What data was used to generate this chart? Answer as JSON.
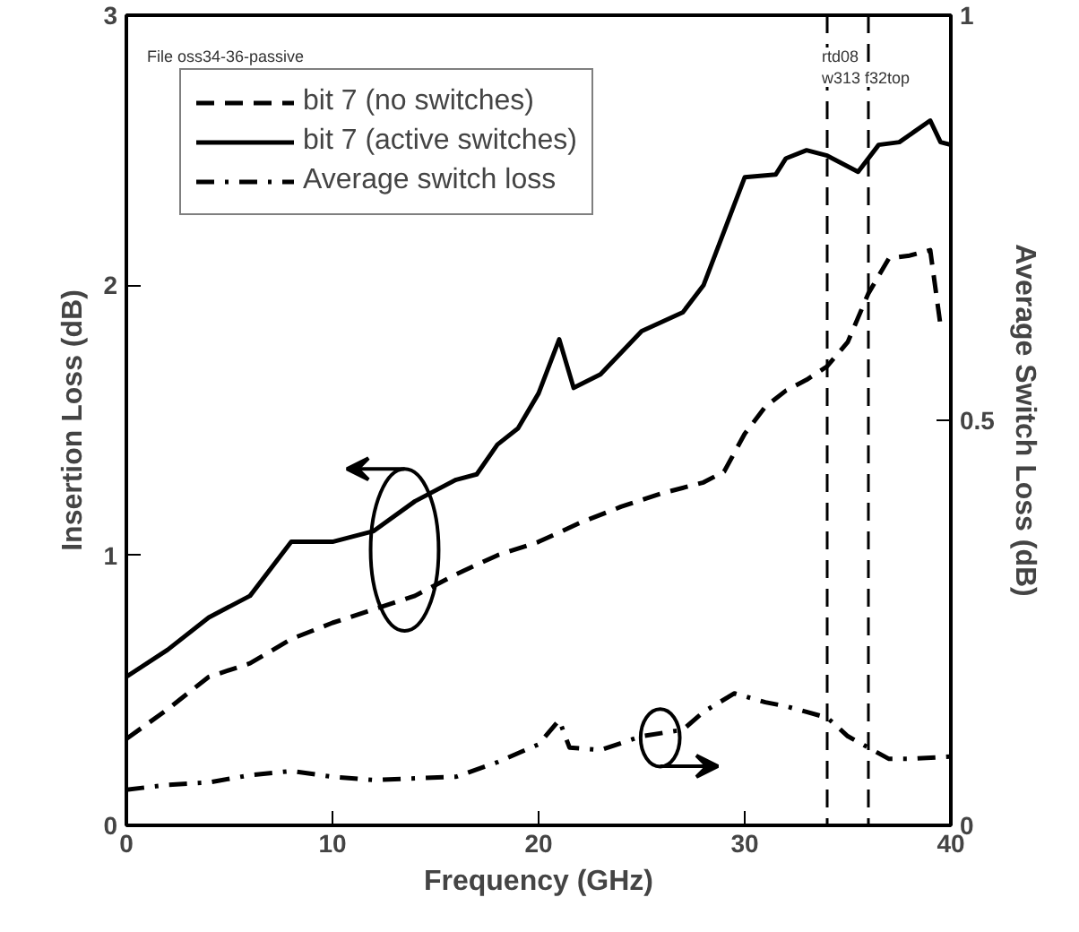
{
  "chart_data": {
    "type": "line",
    "xlabel": "Frequency (GHz)",
    "ylabel": "Insertion Loss (dB)",
    "y2label": "Average Switch Loss (dB)",
    "xlim": [
      0,
      40
    ],
    "xticks": [
      0,
      10,
      20,
      30,
      40
    ],
    "ylim": [
      0,
      3
    ],
    "yticks": [
      0,
      1,
      2,
      3
    ],
    "y2lim": [
      0,
      1
    ],
    "y2ticks": [
      0,
      0.5,
      1
    ],
    "grid": false,
    "legend": "top left",
    "marker": "none",
    "annotations": [
      "File  oss34-36-passive",
      "rtd08",
      "w313 f32top"
    ],
    "ref_lines": [
      {
        "axis": "x",
        "value": 34,
        "line_style": "dashed",
        "color": "#000000"
      },
      {
        "axis": "x",
        "value": 36,
        "line_style": "dashed",
        "color": "#000000"
      }
    ],
    "series": [
      {
        "name": "bit 7 (no switches)",
        "color": "#000000",
        "line_style": "dashed",
        "x": [
          0,
          2,
          4,
          6,
          8,
          10,
          12,
          14,
          16,
          18,
          20,
          22,
          24,
          26,
          28,
          29,
          30,
          31,
          32,
          33,
          34,
          35,
          36,
          37,
          38,
          39,
          39.5
        ],
        "values": [
          0.32,
          0.43,
          0.55,
          0.6,
          0.69,
          0.75,
          0.8,
          0.85,
          0.93,
          1.0,
          1.05,
          1.12,
          1.18,
          1.23,
          1.27,
          1.31,
          1.45,
          1.55,
          1.61,
          1.65,
          1.7,
          1.79,
          1.97,
          2.1,
          2.11,
          2.13,
          1.85
        ]
      },
      {
        "name": "bit 7 (active switches)",
        "color": "#000000",
        "line_style": "solid",
        "x": [
          0,
          2,
          4,
          6,
          8,
          10,
          12,
          14,
          16,
          17,
          18,
          19,
          20,
          21,
          21.7,
          23,
          25,
          27,
          28,
          29.5,
          30,
          31.5,
          32,
          33,
          34,
          35.5,
          36.5,
          37.5,
          39,
          39.5,
          40
        ],
        "values": [
          0.55,
          0.65,
          0.77,
          0.85,
          1.05,
          1.05,
          1.09,
          1.2,
          1.28,
          1.3,
          1.41,
          1.47,
          1.6,
          1.8,
          1.62,
          1.67,
          1.83,
          1.9,
          2.0,
          2.3,
          2.4,
          2.41,
          2.47,
          2.5,
          2.48,
          2.42,
          2.52,
          2.53,
          2.61,
          2.53,
          2.52
        ]
      },
      {
        "name": "Average switch loss",
        "color": "#000000",
        "line_style": "dashdot",
        "axis": "y2",
        "x": [
          0,
          2,
          4,
          6,
          8,
          10,
          12,
          16,
          18,
          20,
          21,
          21.5,
          23,
          25,
          27,
          28,
          29.5,
          31,
          32,
          33,
          34,
          35,
          36,
          37,
          38,
          40
        ],
        "values": [
          0.044,
          0.05,
          0.053,
          0.062,
          0.067,
          0.06,
          0.056,
          0.06,
          0.078,
          0.1,
          0.13,
          0.096,
          0.093,
          0.11,
          0.118,
          0.14,
          0.163,
          0.152,
          0.147,
          0.14,
          0.133,
          0.11,
          0.096,
          0.082,
          0.082,
          0.085
        ]
      }
    ]
  }
}
